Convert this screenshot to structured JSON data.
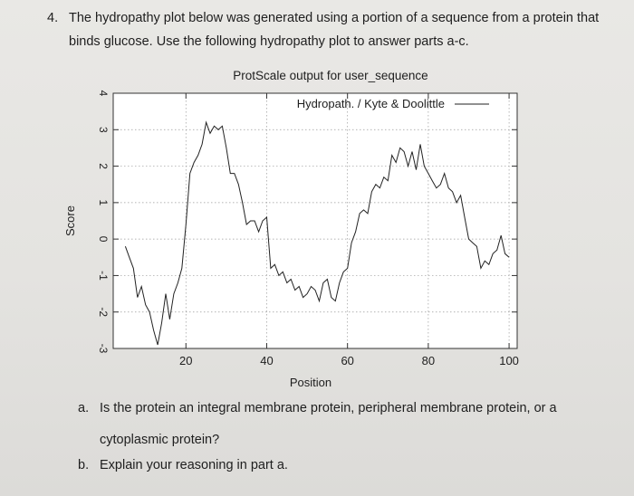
{
  "question": {
    "number": "4.",
    "line1": "The hydropathy plot below was generated using a portion of a sequence from a protein that",
    "line2": "binds glucose.  Use the following hydropathy plot to answer parts a-c."
  },
  "chart_data": {
    "type": "line",
    "title": "ProtScale output for user_sequence",
    "xlabel": "Position",
    "ylabel": "Score",
    "xlim": [
      2,
      102
    ],
    "ylim": [
      -3,
      4
    ],
    "x_ticks": [
      20,
      40,
      60,
      80,
      100
    ],
    "y_ticks": [
      4,
      3,
      2,
      1,
      0,
      -1,
      -2,
      -3
    ],
    "x_tick_labels": [
      "20",
      "40",
      "60",
      "80",
      "100"
    ],
    "y_tick_labels": [
      "4",
      "3",
      "2",
      "1",
      "0",
      "-1",
      "-2",
      "-3"
    ],
    "grid": true,
    "legend_position": "top-right",
    "series": [
      {
        "name": "Hydropath. / Kyte & Doolittle",
        "color": "#222222",
        "x": [
          5,
          6,
          7,
          8,
          9,
          10,
          11,
          12,
          13,
          14,
          15,
          16,
          17,
          18,
          19,
          20,
          21,
          22,
          23,
          24,
          25,
          26,
          27,
          28,
          29,
          30,
          31,
          32,
          33,
          34,
          35,
          36,
          37,
          38,
          39,
          40,
          41,
          42,
          43,
          44,
          45,
          46,
          47,
          48,
          49,
          50,
          51,
          52,
          53,
          54,
          55,
          56,
          57,
          58,
          59,
          60,
          61,
          62,
          63,
          64,
          65,
          66,
          67,
          68,
          69,
          70,
          71,
          72,
          73,
          74,
          75,
          76,
          77,
          78,
          79,
          80,
          81,
          82,
          83,
          84,
          85,
          86,
          87,
          88,
          89,
          90,
          91,
          92,
          93,
          94,
          95,
          96,
          97,
          98,
          99,
          100
        ],
        "y": [
          -0.2,
          -0.5,
          -0.8,
          -1.6,
          -1.3,
          -1.8,
          -2.0,
          -2.5,
          -2.9,
          -2.3,
          -1.5,
          -2.2,
          -1.5,
          -1.2,
          -0.8,
          0.4,
          1.8,
          2.1,
          2.3,
          2.6,
          3.2,
          2.9,
          3.1,
          3.0,
          3.1,
          2.5,
          1.8,
          1.8,
          1.5,
          1.0,
          0.4,
          0.5,
          0.5,
          0.2,
          0.5,
          0.6,
          -0.8,
          -0.7,
          -1.0,
          -0.9,
          -1.2,
          -1.1,
          -1.4,
          -1.3,
          -1.6,
          -1.5,
          -1.3,
          -1.4,
          -1.7,
          -1.2,
          -1.1,
          -1.6,
          -1.7,
          -1.2,
          -0.9,
          -0.8,
          -0.1,
          0.2,
          0.7,
          0.8,
          0.7,
          1.3,
          1.5,
          1.4,
          1.7,
          1.6,
          2.3,
          2.1,
          2.5,
          2.4,
          2.0,
          2.4,
          1.9,
          2.6,
          2.0,
          1.8,
          1.6,
          1.4,
          1.5,
          1.8,
          1.4,
          1.3,
          1.0,
          1.2,
          0.6,
          0.0,
          -0.1,
          -0.2,
          -0.8,
          -0.6,
          -0.7,
          -0.4,
          -0.3,
          0.1,
          -0.4,
          -0.5
        ]
      }
    ]
  },
  "questions": [
    {
      "letter": "a.",
      "line1": "Is the protein an integral membrane protein, peripheral membrane protein, or a",
      "line2": "cytoplasmic protein?"
    },
    {
      "letter": "b.",
      "line1": "Explain your reasoning in part a.",
      "line2": ""
    }
  ]
}
